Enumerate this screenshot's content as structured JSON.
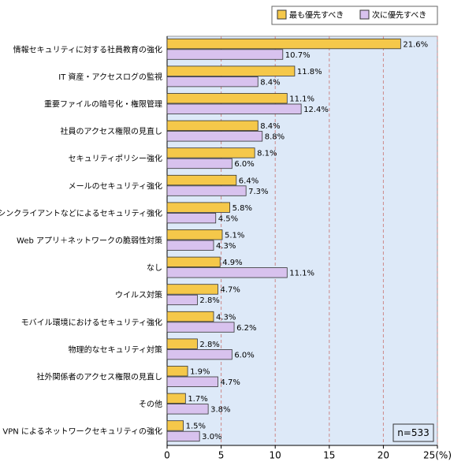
{
  "chart_data": {
    "type": "bar",
    "orientation": "horizontal",
    "categories": [
      "情報セキュリティに対する社員教育の強化",
      "IT 資産・アクセスログの監視",
      "重要ファイルの暗号化・権限管理",
      "社員のアクセス権限の見直し",
      "セキュリティポリシー強化",
      "メールのセキュリティ強化",
      "シンクライアントなどによるセキュリティ強化",
      "Web アプリ＋ネットワークの脆弱性対策",
      "なし",
      "ウイルス対策",
      "モバイル環境におけるセキュリティ強化",
      "物理的なセキュリティ対策",
      "社外関係者のアクセス権限の見直し",
      "その他",
      "VPN によるネットワークセキュリティの強化"
    ],
    "series": [
      {
        "name": "最も優先すべき",
        "color": "#f5c84a",
        "values": [
          21.6,
          11.8,
          11.1,
          8.4,
          8.1,
          6.4,
          5.8,
          5.1,
          4.9,
          4.7,
          4.3,
          2.8,
          1.9,
          1.7,
          1.5
        ],
        "value_labels": [
          "21.6%",
          "11.8%",
          "11.1%",
          "8.4%",
          "8.1%",
          "6.4%",
          "5.8%",
          "5.1%",
          "4.9%",
          "4.7%",
          "4.3%",
          "2.8%",
          "1.9%",
          "1.7%",
          "1.5%"
        ]
      },
      {
        "name": "次に優先すべき",
        "color": "#d8c2ee",
        "values": [
          10.7,
          8.4,
          12.4,
          8.8,
          6,
          7.3,
          4.5,
          4.3,
          11.1,
          2.8,
          6.2,
          6,
          4.7,
          3.8,
          3
        ],
        "value_labels": [
          "10.7%",
          "8.4%",
          "12.4%",
          "8.8%",
          "6.0%",
          "7.3%",
          "4.5%",
          "4.3%",
          "11.1%",
          "2.8%",
          "6.2%",
          "6.0%",
          "4.7%",
          "3.8%",
          "3.0%"
        ]
      }
    ],
    "xlim": [
      0,
      25
    ],
    "xticks": [
      0,
      5,
      10,
      15,
      20,
      {
        "value": 25,
        "label": "25(%)"
      }
    ],
    "grid": true,
    "legend": "top-right",
    "annotation": "n=533"
  }
}
